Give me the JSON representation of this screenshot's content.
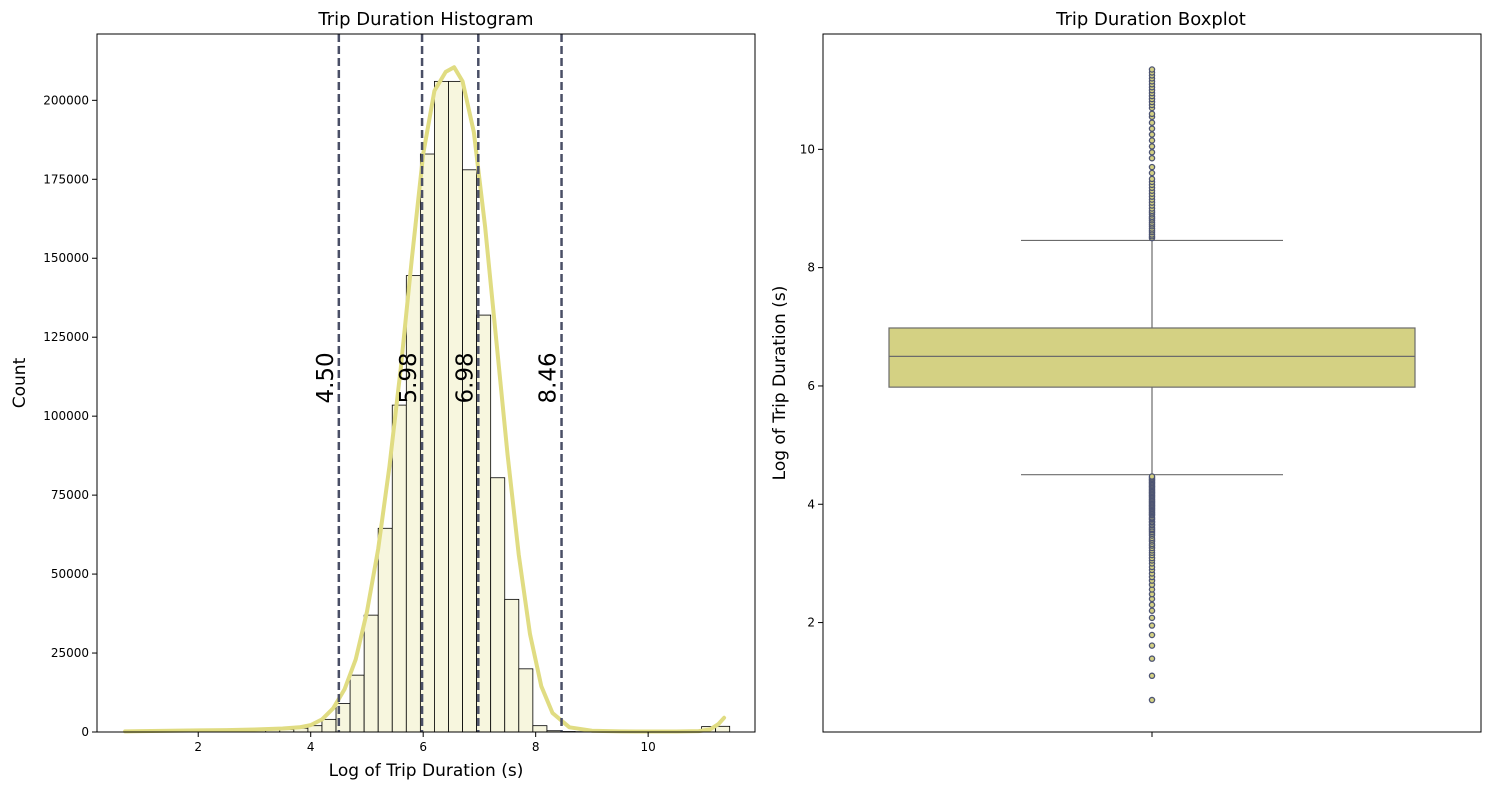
{
  "colors": {
    "bar_fill": "#f7f6de",
    "bar_edge": "#000000",
    "kde_line": "#e0dc82",
    "ref_line": "#4a4f66",
    "box_fill": "#d4d183",
    "box_edge": "#6b6b6b",
    "flier": "#4d5473"
  },
  "chart_data": [
    {
      "type": "bar",
      "title": "Trip Duration Histogram",
      "xlabel": "Log of Trip Duration (s)",
      "ylabel": "Count",
      "xlim": [
        0.2,
        11.9
      ],
      "ylim": [
        0,
        221000
      ],
      "xticks": [
        2,
        4,
        6,
        8,
        10
      ],
      "yticks": [
        0,
        25000,
        50000,
        75000,
        100000,
        125000,
        150000,
        175000,
        200000
      ],
      "bin_edges": [
        0.7,
        0.95,
        1.2,
        1.45,
        1.7,
        1.95,
        2.2,
        2.45,
        2.7,
        2.95,
        3.2,
        3.45,
        3.7,
        3.95,
        4.2,
        4.45,
        4.7,
        4.95,
        5.2,
        5.45,
        5.7,
        5.95,
        6.2,
        6.45,
        6.7,
        6.95,
        7.2,
        7.45,
        7.7,
        7.95,
        8.2,
        8.45,
        8.7,
        8.95,
        9.2,
        9.45,
        9.7,
        9.95,
        10.2,
        10.45,
        10.7,
        10.95,
        11.2,
        11.45
      ],
      "counts": [
        100,
        200,
        300,
        250,
        250,
        300,
        350,
        400,
        450,
        500,
        600,
        800,
        1200,
        2000,
        4000,
        9000,
        18000,
        37000,
        64500,
        103500,
        144500,
        183000,
        206000,
        206000,
        178000,
        132000,
        80500,
        42000,
        20000,
        2000,
        400,
        150,
        100,
        80,
        60,
        50,
        40,
        40,
        40,
        40,
        40,
        1700,
        1800
      ],
      "kde": {
        "x": [
          0.7,
          1.0,
          1.5,
          2.0,
          2.5,
          3.0,
          3.5,
          3.8,
          4.0,
          4.2,
          4.4,
          4.6,
          4.8,
          5.0,
          5.2,
          5.4,
          5.6,
          5.8,
          6.0,
          6.2,
          6.4,
          6.55,
          6.7,
          6.9,
          7.1,
          7.3,
          7.5,
          7.7,
          7.9,
          8.1,
          8.3,
          8.6,
          9.0,
          9.5,
          10.0,
          10.5,
          10.9,
          11.1,
          11.25,
          11.35
        ],
        "y": [
          200,
          300,
          400,
          500,
          600,
          800,
          1100,
          1500,
          2200,
          4000,
          7500,
          13500,
          23000,
          38000,
          58000,
          84000,
          115000,
          150000,
          183000,
          203000,
          209000,
          210500,
          206000,
          190000,
          160000,
          124000,
          88000,
          56000,
          31000,
          14500,
          6000,
          1500,
          400,
          200,
          150,
          150,
          300,
          800,
          2500,
          4500
        ]
      },
      "ref_lines": [
        {
          "x": 4.5,
          "label": "4.50"
        },
        {
          "x": 5.98,
          "label": "5.98"
        },
        {
          "x": 6.98,
          "label": "6.98"
        },
        {
          "x": 8.46,
          "label": "8.46"
        }
      ],
      "ref_label_y": 104000
    },
    {
      "type": "box",
      "title": "Trip Duration Boxplot",
      "xlabel": "",
      "ylabel": "Log of Trip Duration (s)",
      "ylim": [
        0.15,
        11.95
      ],
      "yticks": [
        2,
        4,
        6,
        8,
        10
      ],
      "xticks": [
        ""
      ],
      "q1": 5.98,
      "median": 6.5,
      "q3": 6.98,
      "whisker_low": 4.5,
      "whisker_high": 8.46,
      "fliers": [
        0.69,
        1.1,
        1.39,
        1.61,
        1.79,
        1.95,
        2.08,
        2.2,
        2.3,
        2.4,
        2.48,
        2.56,
        2.64,
        2.71,
        2.77,
        2.83,
        2.89,
        2.94,
        3.0,
        3.05,
        3.09,
        3.14,
        3.18,
        3.22,
        3.26,
        3.3,
        3.33,
        3.37,
        3.4,
        3.43,
        3.47,
        3.5,
        3.53,
        3.56,
        3.58,
        3.61,
        3.64,
        3.66,
        3.69,
        3.71,
        3.74,
        3.76,
        3.78,
        3.81,
        3.83,
        3.85,
        3.87,
        3.89,
        3.91,
        3.93,
        3.95,
        3.97,
        3.99,
        4.01,
        4.03,
        4.05,
        4.07,
        4.09,
        4.11,
        4.13,
        4.15,
        4.17,
        4.19,
        4.21,
        4.23,
        4.25,
        4.27,
        4.29,
        4.31,
        4.33,
        4.35,
        4.37,
        4.39,
        4.41,
        4.43,
        4.45,
        4.47,
        8.5,
        8.53,
        8.56,
        8.6,
        8.63,
        8.66,
        8.7,
        8.73,
        8.76,
        8.8,
        8.83,
        8.86,
        8.9,
        8.93,
        8.96,
        9.0,
        9.05,
        9.1,
        9.15,
        9.2,
        9.25,
        9.3,
        9.35,
        9.4,
        9.45,
        9.5,
        9.6,
        9.7,
        9.85,
        9.95,
        10.05,
        10.15,
        10.25,
        10.35,
        10.45,
        10.55,
        10.6,
        10.7,
        10.75,
        10.8,
        10.85,
        10.9,
        10.95,
        11.0,
        11.05,
        11.1,
        11.15,
        11.2,
        11.25,
        11.3,
        11.35
      ]
    }
  ]
}
